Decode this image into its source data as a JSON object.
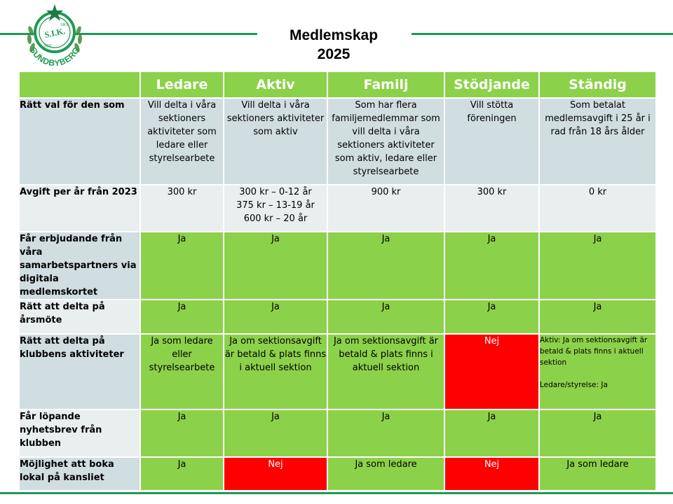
{
  "logo": {
    "initials": "S.I.K.",
    "est": "1893",
    "text": "SUNDBYBERG",
    "small": "SIKS"
  },
  "title": {
    "line1": "Medlemskap",
    "line2": "2025"
  },
  "colors": {
    "accent_green": "#1e9a55",
    "header_green": "#8cd14a",
    "cell_green": "#8cd14a",
    "label_blue": "#d0dde1",
    "cell_gray": "#e9eeef",
    "red": "#ff0000"
  },
  "table": {
    "columns": [
      "Ledare",
      "Aktiv",
      "Familj",
      "Stödjande",
      "Ständig"
    ],
    "rows": [
      {
        "label": "Rätt val för den som",
        "cells": [
          "Vill delta i våra sektioners aktiviteter som ledare eller styrelsearbete",
          "Vill delta i våra sektioners aktiviteter som aktiv",
          "Som har flera familjemedlemmar som vill delta i våra sektioners aktiviteter som aktiv, ledare eller styrelsearbete",
          "Vill stötta föreningen",
          "Som betalat medlemsavgift i 25 år i rad från 18 års ålder"
        ]
      },
      {
        "label": "Avgift per år från 2023",
        "cells": [
          "300 kr",
          [
            "300 kr – 0-12 år",
            "375 kr – 13-19 år",
            "600 kr – 20 år"
          ],
          "900 kr",
          "300 kr",
          "0 kr"
        ]
      },
      {
        "label": "Får erbjudande från våra samarbetspartners via digitala medlemskortet",
        "cells": [
          "Ja",
          "Ja",
          "Ja",
          "Ja",
          "Ja"
        ]
      },
      {
        "label": "Rätt att delta på årsmöte",
        "cells": [
          "Ja",
          "Ja",
          "Ja",
          "Ja",
          "Ja"
        ]
      },
      {
        "label": "Rätt att delta på klubbens aktiviteter",
        "cells": [
          "Ja som ledare eller styrelsearbete",
          "Ja om sektionsavgift är betald & plats finns i aktuell sektion",
          "Ja om sektionsavgift är betald & plats finns i aktuell sektion",
          "Nej",
          [
            "Aktiv: Ja om sektionsavgift är betald & plats finns i aktuell sektion",
            "Ledare/styrelse: Ja"
          ]
        ]
      },
      {
        "label": "Får löpande nyhetsbrev från klubben",
        "cells": [
          "Ja",
          "Ja",
          "Ja",
          "Ja",
          "Ja"
        ]
      },
      {
        "label": "Möjlighet att boka lokal på kansliet",
        "cells": [
          "Ja",
          "Nej",
          "Ja som ledare",
          "Nej",
          "Ja som ledare"
        ]
      }
    ]
  }
}
